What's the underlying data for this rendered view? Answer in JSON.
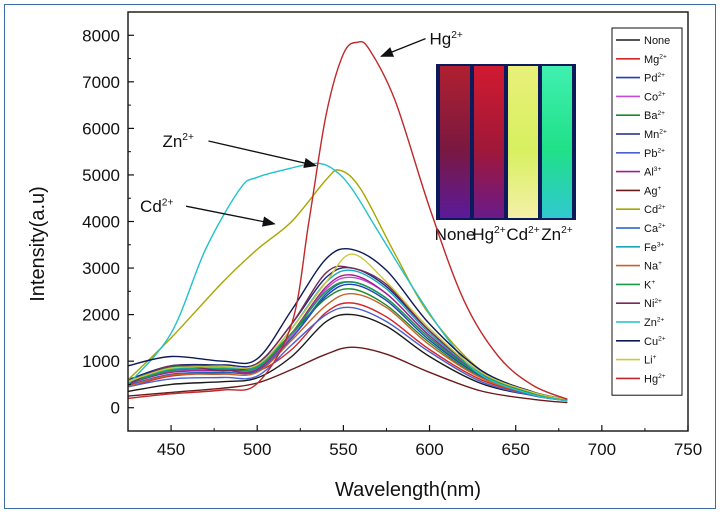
{
  "chart_data": {
    "type": "line",
    "xlabel": "Wavelength(nm)",
    "ylabel": "Intensity(a.u)",
    "xlim": [
      425,
      750
    ],
    "ylim": [
      -500,
      8500
    ],
    "xticks": [
      "450",
      "500",
      "550",
      "600",
      "650",
      "700",
      "750"
    ],
    "yticks": [
      "0",
      "1000",
      "2000",
      "3000",
      "4000",
      "5000",
      "6000",
      "7000",
      "8000"
    ],
    "grid": false,
    "legend_position": "right",
    "series": [
      {
        "name": "None",
        "color": "#1a1a1a",
        "x": [
          425,
          450,
          480,
          500,
          520,
          540,
          555,
          575,
          600,
          630,
          660,
          680
        ],
        "y": [
          350,
          500,
          560,
          640,
          1100,
          1850,
          2000,
          1750,
          1100,
          520,
          260,
          150
        ]
      },
      {
        "name": "Mg",
        "sup": "2+",
        "color": "#d62728",
        "x": [
          425,
          450,
          480,
          500,
          520,
          540,
          555,
          575,
          600,
          630,
          660,
          680
        ],
        "y": [
          450,
          680,
          750,
          780,
          1250,
          2050,
          2250,
          1950,
          1250,
          600,
          280,
          160
        ]
      },
      {
        "name": "Pd",
        "sup": "2+",
        "color": "#1f3fbf",
        "x": [
          425,
          450,
          480,
          500,
          520,
          540,
          555,
          575,
          600,
          630,
          660,
          680
        ],
        "y": [
          550,
          850,
          850,
          870,
          1500,
          2400,
          2650,
          2300,
          1450,
          680,
          300,
          170
        ]
      },
      {
        "name": "Co",
        "sup": "2+",
        "color": "#c34bd6",
        "x": [
          425,
          450,
          480,
          500,
          520,
          540,
          555,
          575,
          600,
          630,
          660,
          680
        ],
        "y": [
          500,
          780,
          800,
          830,
          1550,
          2550,
          2800,
          2450,
          1550,
          720,
          320,
          180
        ]
      },
      {
        "name": "Ba",
        "sup": "2+",
        "color": "#1b8a2a",
        "x": [
          425,
          450,
          480,
          500,
          520,
          540,
          555,
          575,
          600,
          630,
          660,
          680
        ],
        "y": [
          560,
          880,
          880,
          900,
          1600,
          2350,
          2550,
          2200,
          1400,
          650,
          290,
          160
        ]
      },
      {
        "name": "Mn",
        "sup": "2+",
        "color": "#1c2a7a",
        "x": [
          425,
          450,
          480,
          500,
          520,
          540,
          555,
          575,
          600,
          630,
          660,
          680
        ],
        "y": [
          600,
          900,
          920,
          950,
          1800,
          2800,
          3000,
          2600,
          1650,
          760,
          330,
          180
        ]
      },
      {
        "name": "Pb",
        "sup": "2+",
        "color": "#4a5fd0",
        "x": [
          425,
          450,
          480,
          500,
          520,
          540,
          555,
          575,
          600,
          630,
          660,
          680
        ],
        "y": [
          450,
          620,
          650,
          680,
          1350,
          2000,
          2150,
          1850,
          1200,
          560,
          260,
          150
        ]
      },
      {
        "name": "Al",
        "sup": "3+",
        "color": "#a0208f",
        "x": [
          425,
          450,
          480,
          500,
          520,
          540,
          555,
          575,
          600,
          630,
          660,
          680
        ],
        "y": [
          520,
          760,
          800,
          820,
          1600,
          2600,
          2850,
          2450,
          1550,
          720,
          320,
          170
        ]
      },
      {
        "name": "Ag",
        "sup": "+",
        "color": "#6b1a1a",
        "x": [
          425,
          450,
          480,
          500,
          520,
          540,
          555,
          575,
          600,
          630,
          660,
          680
        ],
        "y": [
          250,
          330,
          420,
          530,
          820,
          1150,
          1300,
          1150,
          760,
          360,
          180,
          110
        ]
      },
      {
        "name": "Cd",
        "sup": "2+",
        "color": "#a6a600",
        "x": [
          425,
          450,
          480,
          500,
          520,
          540,
          548,
          560,
          580,
          600,
          630,
          660,
          680
        ],
        "y": [
          600,
          1500,
          2700,
          3400,
          4000,
          4900,
          5100,
          4700,
          3300,
          2000,
          800,
          320,
          150
        ]
      },
      {
        "name": "Ca",
        "sup": "2+",
        "color": "#1f5fbf",
        "x": [
          425,
          450,
          480,
          500,
          520,
          540,
          555,
          575,
          600,
          630,
          660,
          680
        ],
        "y": [
          480,
          720,
          760,
          790,
          1500,
          2450,
          2700,
          2350,
          1500,
          700,
          310,
          170
        ]
      },
      {
        "name": "Fe",
        "sup": "3+",
        "color": "#17a8b8",
        "x": [
          425,
          450,
          480,
          500,
          520,
          540,
          555,
          575,
          600,
          630,
          660,
          680
        ],
        "y": [
          550,
          820,
          850,
          880,
          1700,
          2700,
          2950,
          2550,
          1600,
          740,
          320,
          170
        ]
      },
      {
        "name": "Na",
        "sup": "+",
        "color": "#c8622a",
        "x": [
          425,
          450,
          480,
          500,
          520,
          540,
          555,
          575,
          600,
          630,
          660,
          680
        ],
        "y": [
          460,
          700,
          720,
          760,
          1450,
          2200,
          2450,
          2150,
          1350,
          640,
          290,
          160
        ]
      },
      {
        "name": "K",
        "sup": "+",
        "color": "#1a9a4a",
        "x": [
          425,
          450,
          480,
          500,
          520,
          540,
          555,
          575,
          600,
          630,
          660,
          680
        ],
        "y": [
          520,
          800,
          830,
          860,
          1600,
          2500,
          2700,
          2350,
          1500,
          700,
          300,
          170
        ]
      },
      {
        "name": "Ni",
        "sup": "2+",
        "color": "#7a2a5a",
        "x": [
          425,
          450,
          480,
          500,
          520,
          540,
          555,
          575,
          600,
          630,
          660,
          680
        ],
        "y": [
          500,
          900,
          800,
          950,
          1800,
          2900,
          3000,
          2650,
          1650,
          760,
          330,
          180
        ]
      },
      {
        "name": "Zn",
        "sup": "2+",
        "color": "#22c1cc",
        "x": [
          425,
          450,
          470,
          490,
          500,
          520,
          535,
          545,
          555,
          570,
          590,
          610,
          630,
          660,
          680
        ],
        "y": [
          500,
          1600,
          3400,
          4700,
          4950,
          5150,
          5250,
          5100,
          4700,
          3800,
          2600,
          1500,
          700,
          280,
          150
        ]
      },
      {
        "name": "Cu",
        "sup": "2+",
        "color": "#0e1a55",
        "x": [
          425,
          450,
          480,
          500,
          520,
          540,
          555,
          575,
          600,
          630,
          660,
          680
        ],
        "y": [
          900,
          1100,
          1000,
          1050,
          2100,
          3200,
          3400,
          2950,
          1800,
          800,
          340,
          180
        ]
      },
      {
        "name": "Li",
        "sup": "+",
        "color": "#c9c93a",
        "x": [
          425,
          450,
          480,
          500,
          520,
          540,
          555,
          575,
          600,
          630,
          660,
          680
        ],
        "y": [
          560,
          850,
          880,
          920,
          1700,
          2700,
          3300,
          2700,
          1700,
          760,
          330,
          180
        ]
      },
      {
        "name": "Hg",
        "sup": "2+",
        "color": "#c0282a",
        "x": [
          425,
          450,
          480,
          500,
          520,
          530,
          540,
          550,
          558,
          565,
          580,
          600,
          620,
          640,
          660,
          680
        ],
        "y": [
          200,
          300,
          380,
          520,
          1800,
          4000,
          6300,
          7600,
          7850,
          7700,
          6600,
          4300,
          2300,
          1100,
          480,
          180
        ]
      }
    ],
    "annotations": [
      {
        "text": "Hg",
        "sup": "2+",
        "x": 600,
        "y": 7800,
        "arrow_to_x": 572,
        "arrow_to_y": 7550
      },
      {
        "text": "Zn",
        "sup": "2+",
        "x": 445,
        "y": 5600,
        "arrow_to_x": 534,
        "arrow_to_y": 5200
      },
      {
        "text": "Cd",
        "sup": "2+",
        "x": 432,
        "y": 4200,
        "arrow_to_x": 510,
        "arrow_to_y": 3950
      }
    ],
    "inset": {
      "panels": [
        {
          "label": "None",
          "color_top": "#b02030",
          "color_mid": "#7a1840",
          "color_bottom": "#5a1a9a"
        },
        {
          "label": "Hg",
          "sup": "2+",
          "color_top": "#d01a30",
          "color_mid": "#a01838",
          "color_bottom": "#6a1a8a"
        },
        {
          "label": "Cd",
          "sup": "2+",
          "color_top": "#e8f07a",
          "color_mid": "#d8f060",
          "color_bottom": "#f4f0a8"
        },
        {
          "label": "Zn",
          "sup": "2+",
          "color_top": "#40f0b0",
          "color_mid": "#20e088",
          "color_bottom": "#30c8d0"
        }
      ]
    }
  }
}
